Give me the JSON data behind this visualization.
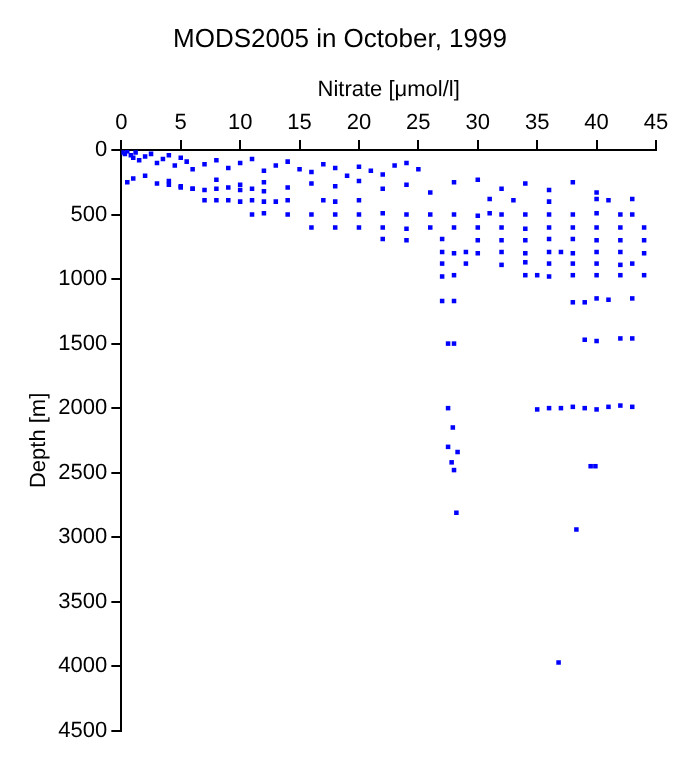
{
  "chart_data": {
    "type": "scatter",
    "title": "MODS2005 in October, 1999",
    "xlabel": "Nitrate [μmol/l]",
    "ylabel": "Depth [m]",
    "xlim": [
      0,
      45
    ],
    "xticks": [
      0,
      5,
      10,
      15,
      20,
      25,
      30,
      35,
      40,
      45
    ],
    "ylim": [
      4500,
      0
    ],
    "yticks": [
      0,
      500,
      1000,
      1500,
      2000,
      2500,
      3000,
      3500,
      4000,
      4500
    ],
    "grid": false,
    "legend": false,
    "marker": "square",
    "series": [
      {
        "color": "#0000ff",
        "x": [
          0.1,
          0.3,
          0.5,
          0.8,
          1,
          1.2,
          1.5,
          2,
          2.5,
          3,
          3.5,
          4,
          4.5,
          5,
          5.5,
          6,
          7,
          8,
          9,
          10,
          11,
          12,
          13,
          14,
          15,
          16,
          17,
          18,
          19,
          20,
          21,
          22,
          23,
          24,
          25,
          0.5,
          1,
          2,
          3,
          4,
          5,
          6,
          8,
          10,
          12,
          14,
          16,
          18,
          20,
          22,
          24,
          26,
          28,
          30,
          32,
          34,
          36,
          38,
          40,
          4,
          5,
          6,
          7,
          8,
          9,
          10,
          11,
          12,
          7,
          8,
          9,
          10,
          11,
          12,
          13,
          14,
          17,
          18,
          20,
          31,
          33,
          36,
          40,
          41,
          43,
          11,
          12,
          14,
          16,
          18,
          20,
          22,
          24,
          26,
          28,
          30,
          31,
          32,
          34,
          36,
          38,
          40,
          42,
          43,
          16,
          18,
          20,
          22,
          24,
          26,
          28,
          30,
          32,
          34,
          36,
          38,
          40,
          42,
          44,
          22,
          24,
          27,
          30,
          32,
          34,
          36,
          38,
          40,
          42,
          44,
          27,
          28,
          29,
          30,
          32,
          34,
          36,
          37,
          38,
          40,
          42,
          44,
          27,
          29,
          32,
          34,
          36,
          38,
          40,
          42,
          43,
          27,
          28,
          34,
          35,
          36,
          38,
          40,
          42,
          44,
          27,
          28,
          38,
          39,
          40,
          41,
          43,
          27.5,
          28,
          39,
          40,
          42,
          43,
          27.5,
          35,
          36,
          37,
          38,
          39,
          40,
          41,
          42,
          43,
          27.9,
          27.5,
          28.3,
          27.8,
          28,
          39.5,
          39.9,
          28.2,
          38.3,
          36.8
        ],
        "values": [
          20,
          30,
          10,
          40,
          60,
          20,
          80,
          50,
          30,
          100,
          70,
          40,
          120,
          60,
          90,
          150,
          110,
          80,
          140,
          100,
          70,
          160,
          120,
          90,
          150,
          170,
          110,
          140,
          200,
          130,
          160,
          190,
          120,
          100,
          150,
          250,
          220,
          200,
          260,
          240,
          280,
          300,
          230,
          270,
          250,
          290,
          260,
          280,
          240,
          300,
          270,
          330,
          250,
          230,
          300,
          260,
          310,
          250,
          330,
          270,
          290,
          300,
          310,
          300,
          290,
          310,
          300,
          320,
          390,
          390,
          390,
          400,
          390,
          400,
          400,
          390,
          390,
          400,
          390,
          380,
          390,
          400,
          380,
          390,
          380,
          500,
          490,
          500,
          500,
          500,
          500,
          490,
          500,
          500,
          500,
          510,
          490,
          500,
          500,
          500,
          500,
          490,
          500,
          500,
          600,
          600,
          600,
          600,
          610,
          600,
          600,
          600,
          600,
          610,
          600,
          600,
          600,
          600,
          600,
          690,
          700,
          690,
          700,
          700,
          700,
          690,
          690,
          700,
          700,
          700,
          790,
          800,
          790,
          800,
          790,
          800,
          790,
          790,
          800,
          790,
          790,
          800,
          880,
          880,
          890,
          870,
          880,
          880,
          880,
          890,
          880,
          980,
          970,
          970,
          970,
          980,
          970,
          970,
          970,
          970,
          1170,
          1170,
          1180,
          1180,
          1150,
          1160,
          1150,
          1500,
          1500,
          1470,
          1480,
          1460,
          1460,
          2000,
          2010,
          2000,
          2000,
          1990,
          2000,
          2010,
          1990,
          1980,
          1990,
          2150,
          2300,
          2340,
          2420,
          2480,
          2450,
          2450,
          2810,
          2940,
          3970
        ]
      }
    ]
  }
}
